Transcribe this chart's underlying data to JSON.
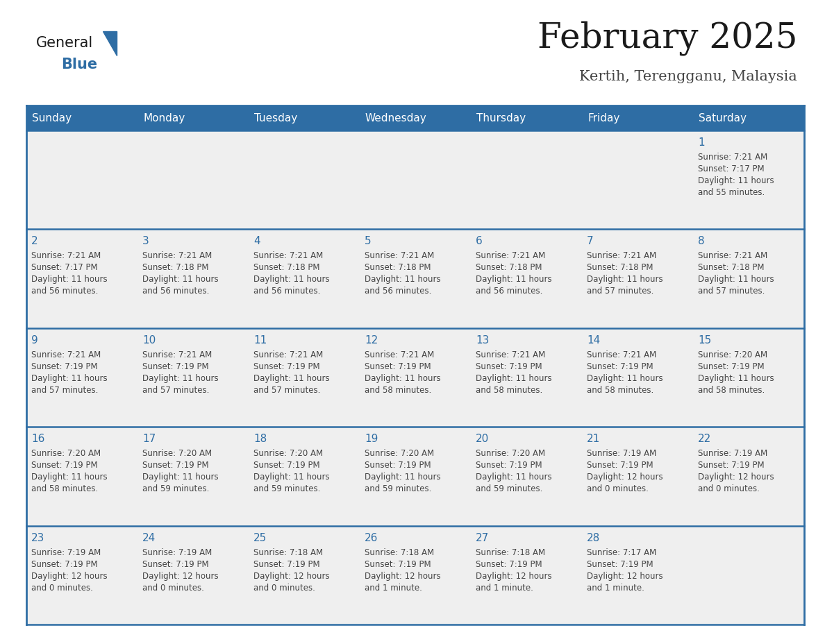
{
  "title": "February 2025",
  "subtitle": "Kertih, Terengganu, Malaysia",
  "days_of_week": [
    "Sunday",
    "Monday",
    "Tuesday",
    "Wednesday",
    "Thursday",
    "Friday",
    "Saturday"
  ],
  "header_bg": "#2E6DA4",
  "header_text": "#FFFFFF",
  "cell_bg_light": "#EFEFEF",
  "cell_bg_white": "#FFFFFF",
  "border_color": "#2E6DA4",
  "title_color": "#1a1a1a",
  "subtitle_color": "#444444",
  "day_number_color": "#2E6DA4",
  "cell_text_color": "#444444",
  "logo_general_color": "#1a1a1a",
  "logo_blue_color": "#2E6DA4",
  "calendar_data": [
    [
      null,
      null,
      null,
      null,
      null,
      null,
      {
        "day": 1,
        "sunrise": "7:21 AM",
        "sunset": "7:17 PM",
        "daylight_h": "11 hours",
        "daylight_m": "and 55 minutes."
      }
    ],
    [
      {
        "day": 2,
        "sunrise": "7:21 AM",
        "sunset": "7:17 PM",
        "daylight_h": "11 hours",
        "daylight_m": "and 56 minutes."
      },
      {
        "day": 3,
        "sunrise": "7:21 AM",
        "sunset": "7:18 PM",
        "daylight_h": "11 hours",
        "daylight_m": "and 56 minutes."
      },
      {
        "day": 4,
        "sunrise": "7:21 AM",
        "sunset": "7:18 PM",
        "daylight_h": "11 hours",
        "daylight_m": "and 56 minutes."
      },
      {
        "day": 5,
        "sunrise": "7:21 AM",
        "sunset": "7:18 PM",
        "daylight_h": "11 hours",
        "daylight_m": "and 56 minutes."
      },
      {
        "day": 6,
        "sunrise": "7:21 AM",
        "sunset": "7:18 PM",
        "daylight_h": "11 hours",
        "daylight_m": "and 56 minutes."
      },
      {
        "day": 7,
        "sunrise": "7:21 AM",
        "sunset": "7:18 PM",
        "daylight_h": "11 hours",
        "daylight_m": "and 57 minutes."
      },
      {
        "day": 8,
        "sunrise": "7:21 AM",
        "sunset": "7:18 PM",
        "daylight_h": "11 hours",
        "daylight_m": "and 57 minutes."
      }
    ],
    [
      {
        "day": 9,
        "sunrise": "7:21 AM",
        "sunset": "7:19 PM",
        "daylight_h": "11 hours",
        "daylight_m": "and 57 minutes."
      },
      {
        "day": 10,
        "sunrise": "7:21 AM",
        "sunset": "7:19 PM",
        "daylight_h": "11 hours",
        "daylight_m": "and 57 minutes."
      },
      {
        "day": 11,
        "sunrise": "7:21 AM",
        "sunset": "7:19 PM",
        "daylight_h": "11 hours",
        "daylight_m": "and 57 minutes."
      },
      {
        "day": 12,
        "sunrise": "7:21 AM",
        "sunset": "7:19 PM",
        "daylight_h": "11 hours",
        "daylight_m": "and 58 minutes."
      },
      {
        "day": 13,
        "sunrise": "7:21 AM",
        "sunset": "7:19 PM",
        "daylight_h": "11 hours",
        "daylight_m": "and 58 minutes."
      },
      {
        "day": 14,
        "sunrise": "7:21 AM",
        "sunset": "7:19 PM",
        "daylight_h": "11 hours",
        "daylight_m": "and 58 minutes."
      },
      {
        "day": 15,
        "sunrise": "7:20 AM",
        "sunset": "7:19 PM",
        "daylight_h": "11 hours",
        "daylight_m": "and 58 minutes."
      }
    ],
    [
      {
        "day": 16,
        "sunrise": "7:20 AM",
        "sunset": "7:19 PM",
        "daylight_h": "11 hours",
        "daylight_m": "and 58 minutes."
      },
      {
        "day": 17,
        "sunrise": "7:20 AM",
        "sunset": "7:19 PM",
        "daylight_h": "11 hours",
        "daylight_m": "and 59 minutes."
      },
      {
        "day": 18,
        "sunrise": "7:20 AM",
        "sunset": "7:19 PM",
        "daylight_h": "11 hours",
        "daylight_m": "and 59 minutes."
      },
      {
        "day": 19,
        "sunrise": "7:20 AM",
        "sunset": "7:19 PM",
        "daylight_h": "11 hours",
        "daylight_m": "and 59 minutes."
      },
      {
        "day": 20,
        "sunrise": "7:20 AM",
        "sunset": "7:19 PM",
        "daylight_h": "11 hours",
        "daylight_m": "and 59 minutes."
      },
      {
        "day": 21,
        "sunrise": "7:19 AM",
        "sunset": "7:19 PM",
        "daylight_h": "12 hours",
        "daylight_m": "and 0 minutes."
      },
      {
        "day": 22,
        "sunrise": "7:19 AM",
        "sunset": "7:19 PM",
        "daylight_h": "12 hours",
        "daylight_m": "and 0 minutes."
      }
    ],
    [
      {
        "day": 23,
        "sunrise": "7:19 AM",
        "sunset": "7:19 PM",
        "daylight_h": "12 hours",
        "daylight_m": "and 0 minutes."
      },
      {
        "day": 24,
        "sunrise": "7:19 AM",
        "sunset": "7:19 PM",
        "daylight_h": "12 hours",
        "daylight_m": "and 0 minutes."
      },
      {
        "day": 25,
        "sunrise": "7:18 AM",
        "sunset": "7:19 PM",
        "daylight_h": "12 hours",
        "daylight_m": "and 0 minutes."
      },
      {
        "day": 26,
        "sunrise": "7:18 AM",
        "sunset": "7:19 PM",
        "daylight_h": "12 hours",
        "daylight_m": "and 1 minute."
      },
      {
        "day": 27,
        "sunrise": "7:18 AM",
        "sunset": "7:19 PM",
        "daylight_h": "12 hours",
        "daylight_m": "and 1 minute."
      },
      {
        "day": 28,
        "sunrise": "7:17 AM",
        "sunset": "7:19 PM",
        "daylight_h": "12 hours",
        "daylight_m": "and 1 minute."
      },
      null
    ]
  ]
}
